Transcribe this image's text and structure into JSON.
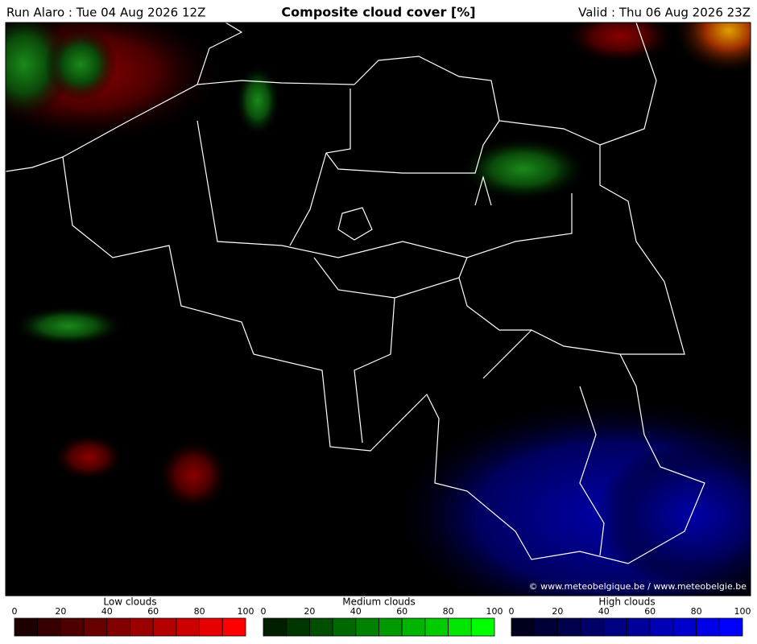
{
  "header": {
    "run": "Run Alaro : Tue 04 Aug 2026 12Z",
    "title": "Composite cloud cover [%]",
    "valid": "Valid : Thu 06 Aug 2026 23Z"
  },
  "map": {
    "credit": "© www.meteobelgique.be / www.meteobelgie.be"
  },
  "legends": [
    {
      "title": "Low clouds",
      "ticks": [
        0,
        20,
        40,
        60,
        80,
        100
      ],
      "colors": [
        "#1e0000",
        "#360000",
        "#4e0000",
        "#680000",
        "#820000",
        "#9a0000",
        "#b40000",
        "#cc0000",
        "#e60000",
        "#ff0000"
      ]
    },
    {
      "title": "Medium clouds",
      "ticks": [
        0,
        20,
        40,
        60,
        80,
        100
      ],
      "colors": [
        "#001e00",
        "#003600",
        "#004e00",
        "#006800",
        "#008200",
        "#009a00",
        "#00b400",
        "#00cc00",
        "#00e600",
        "#00ff00"
      ]
    },
    {
      "title": "High clouds",
      "ticks": [
        0,
        20,
        40,
        60,
        80,
        100
      ],
      "colors": [
        "#00001e",
        "#000036",
        "#00004e",
        "#000068",
        "#000082",
        "#00009a",
        "#0000b4",
        "#0000cc",
        "#0000e6",
        "#0000ff"
      ]
    }
  ]
}
